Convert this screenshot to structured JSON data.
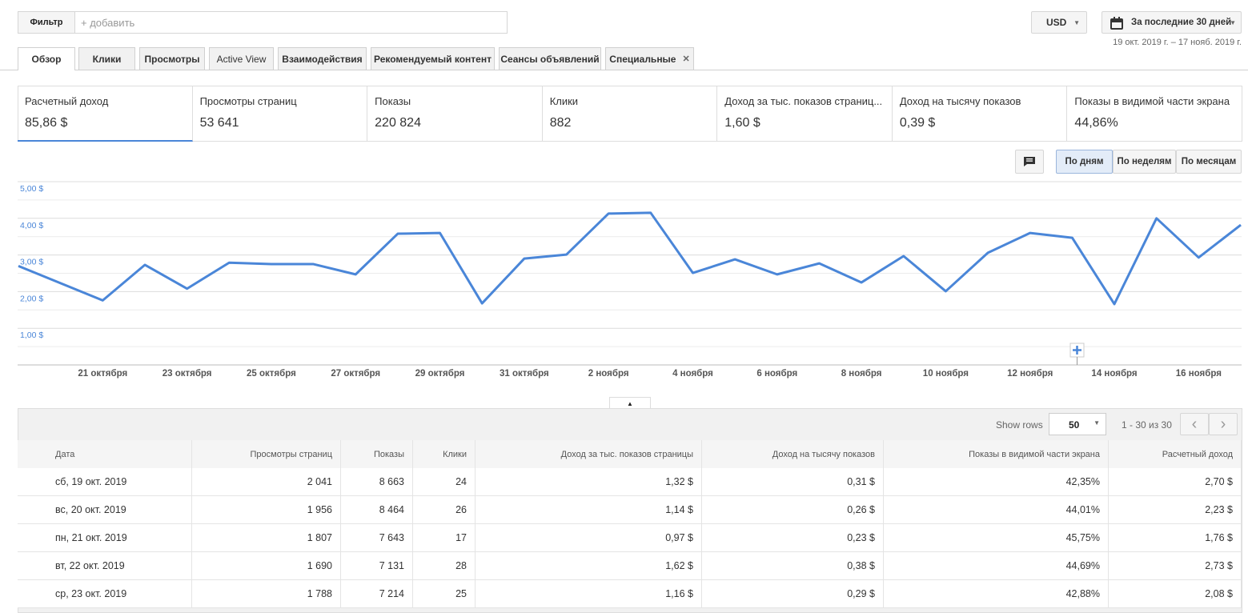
{
  "filter": {
    "label": "Фильтр",
    "placeholder": "+ добавить"
  },
  "currency": "USD",
  "date_range": {
    "label": "За последние 30 дней",
    "dates": "19 окт. 2019 г. – 17 нояб. 2019 г."
  },
  "tabs": [
    "Обзор",
    "Клики",
    "Просмотры",
    "Active View",
    "Взаимодействия",
    "Рекомендуемый контент",
    "Сеансы объявлений",
    "Специальные"
  ],
  "metrics": [
    {
      "label": "Расчетный доход",
      "value": "85,86 $"
    },
    {
      "label": "Просмотры страниц",
      "value": "53 641"
    },
    {
      "label": "Показы",
      "value": "220 824"
    },
    {
      "label": "Клики",
      "value": "882"
    },
    {
      "label": "Доход за тыс. показов страниц...",
      "value": "1,60 $"
    },
    {
      "label": "Доход на тысячу показов",
      "value": "0,39 $"
    },
    {
      "label": "Показы в видимой части экрана",
      "value": "44,86%"
    }
  ],
  "granularity": [
    "По дням",
    "По неделям",
    "По месяцам"
  ],
  "chart_data": {
    "type": "line",
    "categories": [
      null,
      null,
      "21 октября",
      null,
      "23 октября",
      null,
      "25 октября",
      null,
      "27 октября",
      null,
      "29 октября",
      null,
      "31 октября",
      null,
      "2 ноября",
      null,
      "4 ноября",
      null,
      "6 ноября",
      null,
      "8 ноября",
      null,
      "10 ноября",
      null,
      "12 ноября",
      null,
      "14 ноября",
      null,
      "16 ноября",
      null
    ],
    "series": [
      {
        "color": "#4a86d8",
        "values": [
          2.7,
          2.23,
          1.76,
          2.73,
          2.08,
          2.79,
          2.75,
          2.75,
          2.47,
          3.58,
          3.6,
          1.68,
          2.9,
          3.01,
          4.13,
          4.15,
          2.51,
          2.88,
          2.47,
          2.77,
          2.25,
          2.97,
          2.01,
          3.06,
          3.6,
          3.47,
          1.66,
          4.0,
          2.93,
          3.82
        ]
      }
    ],
    "ylim": [
      0,
      5
    ],
    "yticks": [
      {
        "value": 1,
        "label": "1,00 $"
      },
      {
        "value": 2,
        "label": "2,00 $"
      },
      {
        "value": 3,
        "label": "3,00 $"
      },
      {
        "value": 4,
        "label": "4,00 $"
      },
      {
        "value": 5,
        "label": "5,00 $"
      }
    ],
    "grid": true,
    "minor_grid": true
  },
  "table": {
    "show_rows_label": "Show rows",
    "show_rows": "50",
    "pagination": "1 - 30 из 30",
    "columns": [
      "Дата",
      "Просмотры страниц",
      "Показы",
      "Клики",
      "Доход за тыс. показов страницы",
      "Доход на тысячу показов",
      "Показы в видимой части экрана",
      "Расчетный доход"
    ],
    "rows": [
      [
        "сб, 19 окт. 2019",
        "2 041",
        "8 663",
        "24",
        "1,32 $",
        "0,31 $",
        "42,35%",
        "2,70 $"
      ],
      [
        "вс, 20 окт. 2019",
        "1 956",
        "8 464",
        "26",
        "1,14 $",
        "0,26 $",
        "44,01%",
        "2,23 $"
      ],
      [
        "пн, 21 окт. 2019",
        "1 807",
        "7 643",
        "17",
        "0,97 $",
        "0,23 $",
        "45,75%",
        "1,76 $"
      ],
      [
        "вт, 22 окт. 2019",
        "1 690",
        "7 131",
        "28",
        "1,62 $",
        "0,38 $",
        "44,69%",
        "2,73 $"
      ],
      [
        "ср, 23 окт. 2019",
        "1 788",
        "7 214",
        "25",
        "1,16 $",
        "0,29 $",
        "42,88%",
        "2,08 $"
      ]
    ]
  }
}
